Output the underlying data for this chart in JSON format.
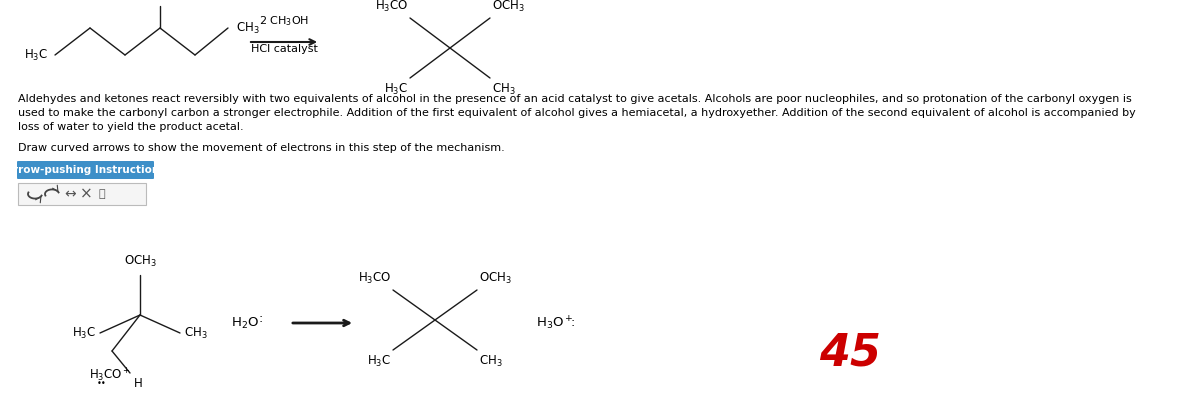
{
  "bg_color": "#ffffff",
  "text_color": "#000000",
  "paragraph_line1": "Aldehydes and ketones react reversibly with two equivalents of alcohol in the presence of an acid catalyst to give acetals. Alcohols are poor nucleophiles, and so protonation of the carbonyl oxygen is",
  "paragraph_line2": "used to make the carbonyl carbon a stronger electrophile. Addition of the first equivalent of alcohol gives a hemiacetal, a hydroxyether. Addition of the second equivalent of alcohol is accompanied by",
  "paragraph_line3": "loss of water to yield the product acetal.",
  "instruction_text": "Draw curved arrows to show the movement of electrons in this step of the mechanism.",
  "button_text": "Arrow-pushing Instructions",
  "button_color": "#3d8fc8",
  "button_text_color": "#ffffff",
  "score_text": "45",
  "score_color": "#cc0000",
  "score_fontsize": 32,
  "lc": "#1a1a1a",
  "lw": 1.0
}
